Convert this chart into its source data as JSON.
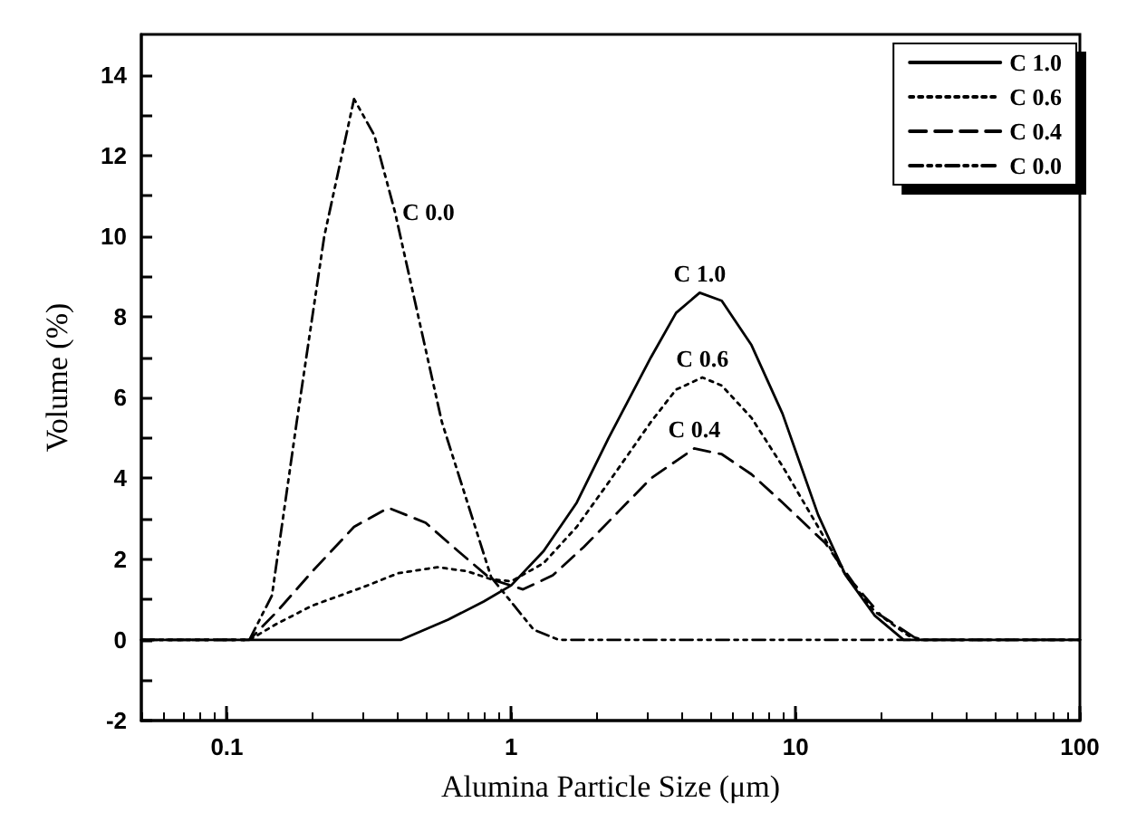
{
  "chart_data": {
    "type": "line",
    "xlabel": "Alumina Particle Size (μm)",
    "ylabel": "Volume (%)",
    "log": "x",
    "xlim": [
      0.05,
      100
    ],
    "xticks": [
      0.1,
      1,
      10,
      100
    ],
    "ylim": [
      -2,
      15
    ],
    "yticks": [
      -2,
      0,
      2,
      4,
      6,
      8,
      10,
      12,
      14
    ],
    "grid": false,
    "legend": "top right",
    "marker": "none",
    "series": [
      {
        "name": "C 1.0",
        "color": "#000000",
        "line_style": "solid",
        "x": [
          0.05,
          0.41,
          0.6,
          0.8,
          1.0,
          1.3,
          1.7,
          2.2,
          3.1,
          3.8,
          4.6,
          5.5,
          7,
          9,
          12,
          15,
          19,
          24,
          100
        ],
        "values": [
          0,
          0,
          0.5,
          0.95,
          1.35,
          2.2,
          3.4,
          5.0,
          7.0,
          8.1,
          8.6,
          8.4,
          7.3,
          5.6,
          3.1,
          1.6,
          0.6,
          0,
          0
        ]
      },
      {
        "name": "C 0.6",
        "color": "#000000",
        "line_style": "dotted",
        "x": [
          0.05,
          0.12,
          0.15,
          0.2,
          0.3,
          0.4,
          0.55,
          0.7,
          0.85,
          1.0,
          1.3,
          1.7,
          2.2,
          3.1,
          3.8,
          4.7,
          5.5,
          7,
          9,
          12,
          15,
          19,
          25,
          28,
          100
        ],
        "values": [
          0,
          0,
          0.4,
          0.85,
          1.3,
          1.65,
          1.8,
          1.7,
          1.5,
          1.45,
          1.9,
          2.8,
          3.9,
          5.4,
          6.2,
          6.5,
          6.3,
          5.5,
          4.3,
          2.8,
          1.6,
          0.7,
          0.1,
          0,
          0
        ]
      },
      {
        "name": "C 0.4",
        "color": "#000000",
        "line_style": "dashed",
        "x": [
          0.05,
          0.12,
          0.15,
          0.2,
          0.28,
          0.37,
          0.5,
          0.65,
          0.85,
          1.1,
          1.4,
          1.8,
          2.4,
          3.1,
          4.4,
          5.5,
          7,
          9,
          12.7,
          16,
          20,
          27,
          100
        ],
        "values": [
          0,
          0,
          0.7,
          1.7,
          2.8,
          3.27,
          2.9,
          2.2,
          1.5,
          1.25,
          1.6,
          2.3,
          3.2,
          4.0,
          4.74,
          4.6,
          4.1,
          3.4,
          2.4,
          1.4,
          0.6,
          0,
          0
        ]
      },
      {
        "name": "C 0.0",
        "color": "#000000",
        "line_style": "dashdot",
        "x": [
          0.05,
          0.12,
          0.144,
          0.176,
          0.22,
          0.28,
          0.33,
          0.39,
          0.57,
          0.85,
          1.2,
          1.47,
          100
        ],
        "values": [
          0,
          0,
          1.1,
          5.4,
          10,
          13.4,
          12.5,
          10.6,
          5.4,
          1.55,
          0.25,
          0,
          0
        ]
      }
    ],
    "annotations": [
      {
        "text": "C 1.0",
        "x": 4.6,
        "y": 8.6
      },
      {
        "text": "C 0.6",
        "x": 4.7,
        "y": 6.5
      },
      {
        "text": "C 0.4",
        "x": 4.4,
        "y": 4.74
      },
      {
        "text": "C 0.0",
        "x": 0.39,
        "y": 10.6
      }
    ]
  }
}
